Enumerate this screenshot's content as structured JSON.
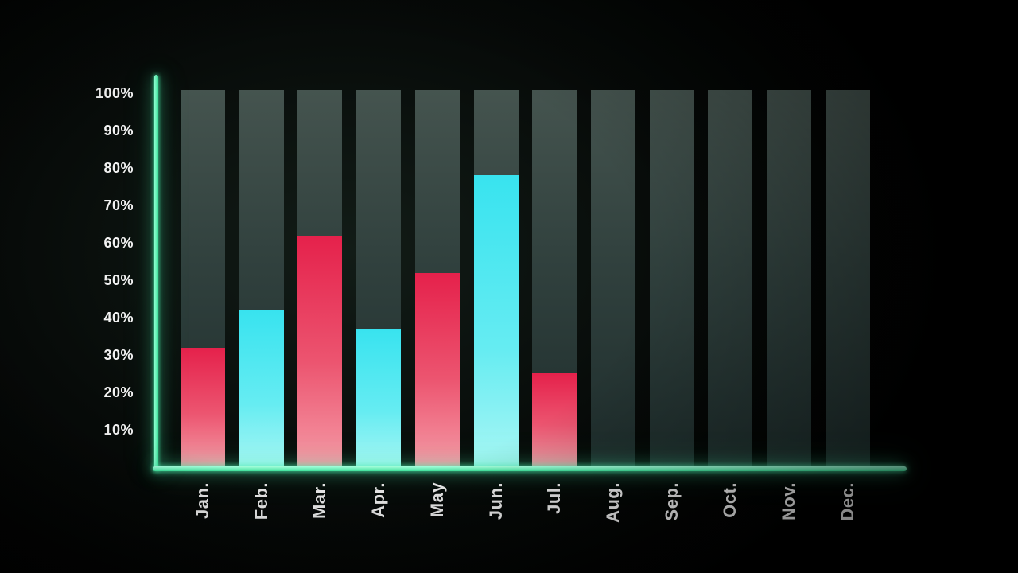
{
  "chart_data": {
    "type": "bar",
    "title": "",
    "xlabel": "",
    "ylabel": "",
    "categories": [
      "Jan.",
      "Feb.",
      "Mar.",
      "Apr.",
      "May",
      "Jun.",
      "Jul.",
      "Aug.",
      "Sep.",
      "Oct.",
      "Nov.",
      "Dec."
    ],
    "values": [
      32,
      42,
      62,
      37,
      52,
      78,
      25,
      0,
      0,
      0,
      0,
      0
    ],
    "bar_colors": [
      "red",
      "cyan",
      "red",
      "cyan",
      "red",
      "cyan",
      "red",
      null,
      null,
      null,
      null,
      null
    ],
    "background_bars_value": 100,
    "y_tick_labels": [
      "100%",
      "90%",
      "80%",
      "70%",
      "60%",
      "50%",
      "40%",
      "30%",
      "20%",
      "10%"
    ],
    "y_tick_values": [
      100,
      90,
      80,
      70,
      60,
      50,
      40,
      30,
      20,
      10
    ],
    "ylim": [
      0,
      100
    ],
    "grid": "off",
    "legend": "none",
    "colors": {
      "axis_glow_green": "#49ecaa",
      "bar_red_top": "#e5214b",
      "bar_red_bottom": "#f59aa6",
      "bar_cyan_top": "#38e3ef",
      "bar_cyan_bottom": "#a9f6f4",
      "background_bar": "#31413e",
      "label_text": "#f2f2f2",
      "page_background": "#000000"
    }
  }
}
